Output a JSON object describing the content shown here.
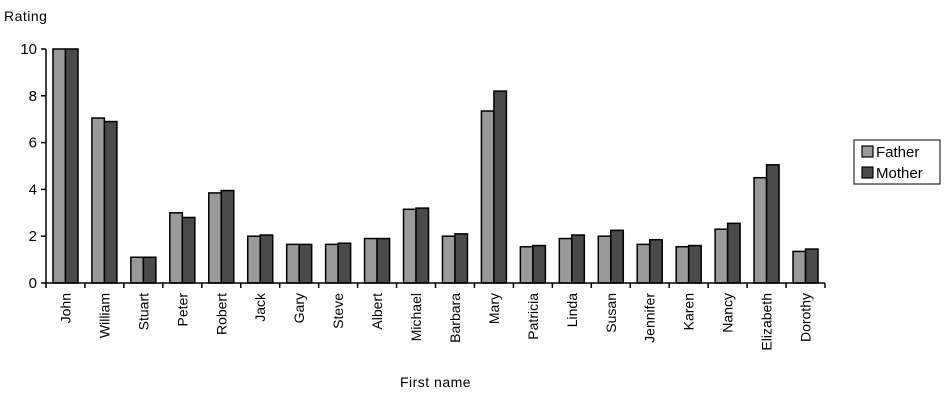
{
  "chart_data": {
    "type": "bar",
    "ylabel": "Rating",
    "xlabel": "First name",
    "ylim": [
      0,
      10
    ],
    "yticks": [
      0,
      2,
      4,
      6,
      8,
      10
    ],
    "grid": false,
    "legend_position": "right",
    "categories": [
      "John",
      "William",
      "Stuart",
      "Peter",
      "Robert",
      "Jack",
      "Gary",
      "Steve",
      "Albert",
      "Michael",
      "Barbara",
      "Mary",
      "Patricia",
      "Linda",
      "Susan",
      "Jennifer",
      "Karen",
      "Nancy",
      "Elizabeth",
      "Dorothy"
    ],
    "series": [
      {
        "name": "Father",
        "color": "#9a9a9a",
        "values": [
          10,
          7.05,
          1.1,
          3.0,
          3.85,
          2.0,
          1.65,
          1.65,
          1.9,
          3.15,
          2.0,
          7.35,
          1.55,
          1.9,
          2.0,
          1.65,
          1.55,
          2.3,
          4.5,
          1.35
        ]
      },
      {
        "name": "Mother",
        "color": "#4a4a4a",
        "values": [
          10,
          6.9,
          1.1,
          2.8,
          3.95,
          2.05,
          1.65,
          1.7,
          1.9,
          3.2,
          2.1,
          8.2,
          1.6,
          2.05,
          2.25,
          1.85,
          1.6,
          2.55,
          5.05,
          1.45
        ]
      }
    ]
  }
}
